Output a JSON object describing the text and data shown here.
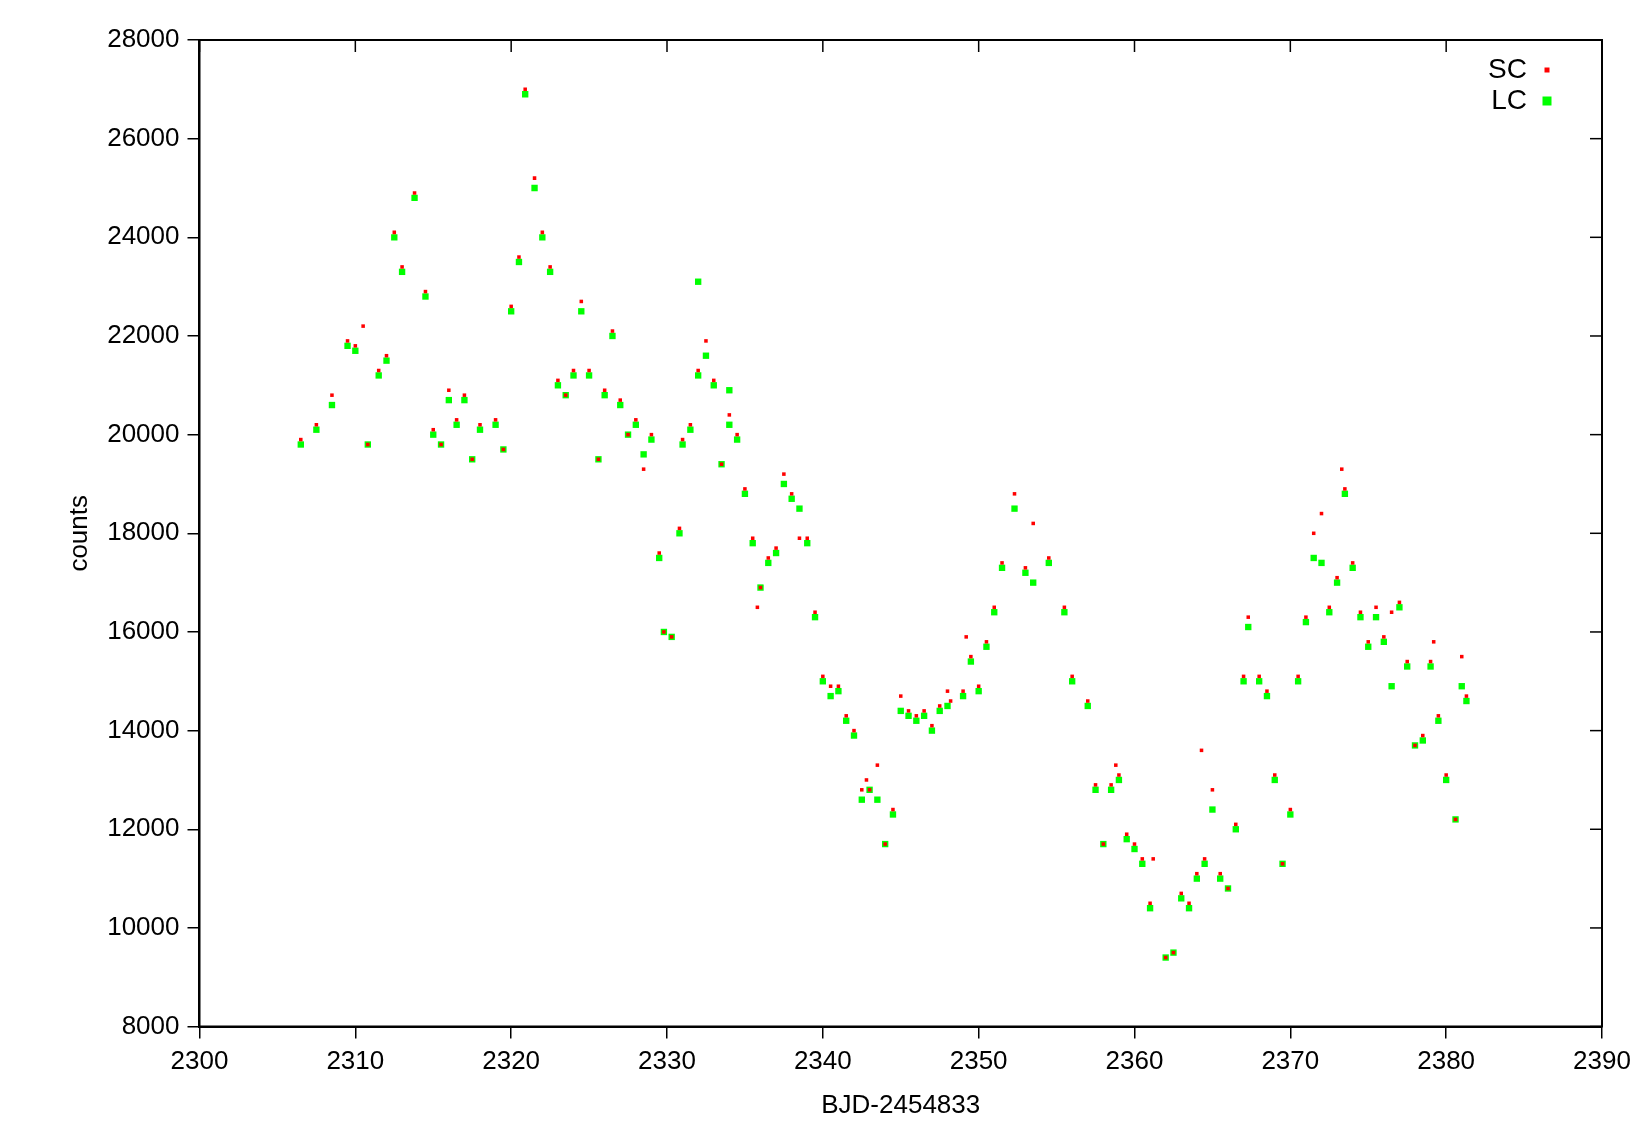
{
  "chart_data": {
    "type": "scatter",
    "xlabel": "BJD-2454833",
    "ylabel": "counts",
    "xlim": [
      2300,
      2390
    ],
    "xticks": [
      2300,
      2310,
      2320,
      2330,
      2340,
      2350,
      2360,
      2370,
      2380,
      2390
    ],
    "ylim": [
      8000,
      28000
    ],
    "yticks": [
      8000,
      10000,
      12000,
      14000,
      16000,
      18000,
      20000,
      22000,
      24000,
      26000,
      28000
    ],
    "grid": false,
    "legend": "top right",
    "marker": "square",
    "series": [
      {
        "name": "SC",
        "color": "#ff0000",
        "x": [
          2306.5,
          2307.5,
          2308.5,
          2309.5,
          2310,
          2310.5,
          2310.8,
          2311.5,
          2312,
          2312.5,
          2313,
          2313.8,
          2314.5,
          2315,
          2315.5,
          2316,
          2316.5,
          2317,
          2317.5,
          2318,
          2319,
          2319.5,
          2320,
          2320.5,
          2320.9,
          2321.5,
          2322,
          2322.5,
          2323,
          2323.5,
          2324,
          2324.5,
          2325,
          2325.6,
          2326,
          2326.5,
          2327,
          2327.5,
          2328,
          2328.5,
          2329,
          2329.5,
          2329.8,
          2330.3,
          2330.8,
          2331,
          2331.5,
          2332,
          2332.5,
          2333,
          2333.5,
          2334,
          2334.5,
          2335,
          2335.5,
          2335.8,
          2336,
          2336.5,
          2337,
          2337.5,
          2338,
          2338.5,
          2339,
          2339.5,
          2340,
          2340.5,
          2341,
          2341.5,
          2342,
          2342.5,
          2342.8,
          2343,
          2343.5,
          2344,
          2344.5,
          2345,
          2345.5,
          2346,
          2346.5,
          2347,
          2347.5,
          2348,
          2348.2,
          2349,
          2349.2,
          2349.5,
          2350,
          2350.5,
          2351,
          2351.5,
          2352.3,
          2353,
          2353.5,
          2354.5,
          2355.5,
          2356,
          2357,
          2357.5,
          2358,
          2358.5,
          2358.8,
          2359,
          2359.5,
          2360,
          2360.5,
          2361,
          2361.2,
          2362,
          2362.5,
          2363,
          2363.5,
          2364,
          2364.3,
          2364.5,
          2365,
          2365.5,
          2366,
          2366.5,
          2367,
          2367.3,
          2368,
          2368.5,
          2369,
          2369.5,
          2370,
          2370.5,
          2371,
          2371.5,
          2372,
          2372.5,
          2373,
          2373.3,
          2373.5,
          2374,
          2374.5,
          2375,
          2375.5,
          2376,
          2376.5,
          2377,
          2377.5,
          2378,
          2378.5,
          2379,
          2379.2,
          2379.5,
          2380,
          2380.6,
          2381,
          2381.3
        ],
        "values": [
          19900,
          20200,
          20800,
          21900,
          21800,
          22200,
          19800,
          21300,
          21600,
          24100,
          23400,
          24900,
          22900,
          20100,
          19800,
          20900,
          20300,
          20800,
          19500,
          20200,
          20300,
          19700,
          22600,
          23600,
          27000,
          25200,
          24100,
          23400,
          21100,
          20800,
          21300,
          22700,
          21300,
          19500,
          20900,
          22100,
          20700,
          20000,
          20300,
          19300,
          20000,
          17600,
          16000,
          15900,
          18100,
          19900,
          20200,
          21300,
          21900,
          21100,
          19400,
          20400,
          20000,
          18900,
          17900,
          16500,
          16900,
          17500,
          17700,
          19200,
          18800,
          17900,
          17900,
          16400,
          15100,
          14900,
          14900,
          14300,
          14000,
          12800,
          13000,
          12800,
          13300,
          11700,
          12400,
          14700,
          14400,
          14300,
          14400,
          14100,
          14500,
          14800,
          14600,
          14800,
          15900,
          15500,
          14900,
          15800,
          16500,
          17400,
          18800,
          17300,
          18200,
          17500,
          16500,
          15100,
          14600,
          12900,
          11700,
          12900,
          13300,
          13100,
          11900,
          11700,
          11400,
          10500,
          11400,
          9400,
          9500,
          10700,
          10500,
          11100,
          13600,
          11400,
          12800,
          11100,
          10800,
          12100,
          15100,
          16300,
          15100,
          14800,
          13100,
          11300,
          12400,
          15100,
          16300,
          18000,
          18400,
          16500,
          17100,
          19300,
          18900,
          17400,
          16400,
          15800,
          16500,
          15900,
          16400,
          16600,
          15400,
          13700,
          13900,
          15400,
          15800,
          14300,
          13100,
          12200,
          15500,
          14700
        ]
      },
      {
        "name": "LC",
        "color": "#00ff00",
        "x": [
          2306.5,
          2307.5,
          2308.5,
          2309.5,
          2310,
          2310.8,
          2311.5,
          2312,
          2312.5,
          2313,
          2313.8,
          2314.5,
          2315,
          2315.5,
          2316,
          2316.5,
          2317,
          2317.5,
          2318,
          2319,
          2319.5,
          2320,
          2320.5,
          2320.9,
          2321.5,
          2322,
          2322.5,
          2323,
          2323.5,
          2324,
          2324.5,
          2325,
          2325.6,
          2326,
          2326.5,
          2327,
          2327.5,
          2328,
          2328.5,
          2329,
          2329.5,
          2329.8,
          2330.3,
          2330.8,
          2331,
          2331.5,
          2332,
          2332.5,
          2333,
          2333.5,
          2334,
          2334.5,
          2335,
          2335.5,
          2336,
          2336.5,
          2337,
          2337.5,
          2338,
          2338.5,
          2339,
          2339.5,
          2340,
          2340.5,
          2341,
          2341.5,
          2342,
          2342.5,
          2343,
          2343.5,
          2344,
          2344.5,
          2345,
          2345.5,
          2346,
          2346.5,
          2347,
          2347.5,
          2348,
          2349,
          2349.5,
          2350,
          2350.5,
          2351,
          2351.5,
          2352.3,
          2353,
          2353.5,
          2354.5,
          2355.5,
          2356,
          2357,
          2357.5,
          2358,
          2358.5,
          2359,
          2359.5,
          2360,
          2360.5,
          2361,
          2362,
          2362.5,
          2363,
          2363.5,
          2364,
          2364.5,
          2365,
          2365.5,
          2366,
          2366.5,
          2367,
          2367.3,
          2368,
          2368.5,
          2369,
          2369.5,
          2370,
          2370.5,
          2371,
          2371.5,
          2372,
          2372.5,
          2373,
          2373.5,
          2374,
          2374.5,
          2375,
          2375.5,
          2376,
          2376.5,
          2377,
          2377.5,
          2378,
          2378.5,
          2379,
          2379.5,
          2380,
          2380.6,
          2381,
          2381.3,
          2332,
          2334
        ],
        "values": [
          19800,
          20100,
          20600,
          21800,
          21700,
          19800,
          21200,
          21500,
          24000,
          23300,
          24800,
          22800,
          20000,
          19800,
          20700,
          20200,
          20700,
          19500,
          20100,
          20200,
          19700,
          22500,
          23500,
          26900,
          25000,
          24000,
          23300,
          21000,
          20800,
          21200,
          22500,
          21200,
          19500,
          20800,
          22000,
          20600,
          20000,
          20200,
          19600,
          19900,
          17500,
          16000,
          15900,
          18000,
          19800,
          20100,
          21200,
          21600,
          21000,
          19400,
          20200,
          19900,
          18800,
          17800,
          16900,
          17400,
          17600,
          19000,
          18700,
          18500,
          17800,
          16300,
          15000,
          14700,
          14800,
          14200,
          13900,
          12600,
          12800,
          12600,
          11700,
          12300,
          14400,
          14300,
          14200,
          14300,
          14000,
          14400,
          14500,
          14700,
          15400,
          14800,
          15700,
          16400,
          17300,
          18500,
          17200,
          17000,
          17400,
          16400,
          15000,
          14500,
          12800,
          11700,
          12800,
          13000,
          11800,
          11600,
          11300,
          10400,
          9400,
          9500,
          10600,
          10400,
          11000,
          11300,
          12400,
          11000,
          10800,
          12000,
          15000,
          16100,
          15000,
          14700,
          13000,
          11300,
          12300,
          15000,
          16200,
          17500,
          17400,
          16400,
          17000,
          18800,
          17300,
          16300,
          15700,
          16300,
          15800,
          14900,
          16500,
          15300,
          13700,
          13800,
          15300,
          14200,
          13000,
          12200,
          14900,
          14600,
          23100,
          20900
        ]
      }
    ]
  }
}
